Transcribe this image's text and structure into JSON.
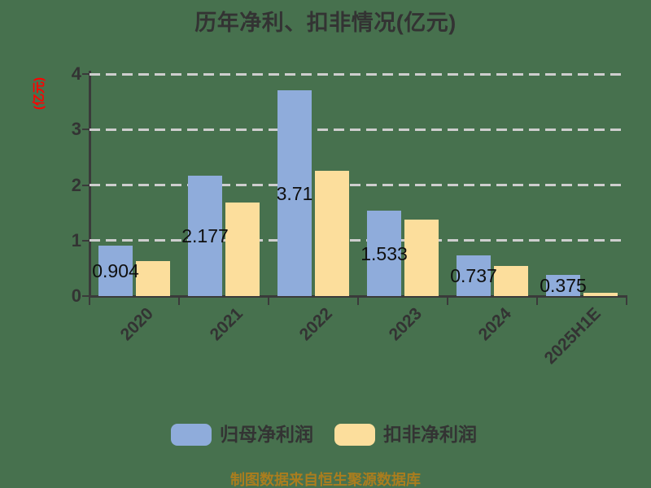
{
  "title": "历年净利、扣非情况(亿元)",
  "colors": {
    "background": "#47714E",
    "bar_blue": "#8FACDB",
    "bar_yellow": "#FCDE9C",
    "grid": "#CECECE",
    "axis": "#3A3A3A",
    "text": "#333333",
    "value_label": "#0F0F0F",
    "ylabel_red": "#FF0000",
    "footer_gold": "#AA7D1E"
  },
  "chart_data": {
    "type": "bar",
    "title": "历年净利、扣非情况(亿元)",
    "ylabel": "(亿元)",
    "xlabel": "",
    "categories": [
      "2020",
      "2021",
      "2022",
      "2023",
      "2024",
      "2025H1E"
    ],
    "series": [
      {
        "name": "归母净利润",
        "color": "#8FACDB",
        "values": [
          0.904,
          2.177,
          3.71,
          1.533,
          0.737,
          0.375
        ],
        "labels": [
          "0.904",
          "2.177",
          "3.71",
          "1.533",
          "0.737",
          "0.375"
        ]
      },
      {
        "name": "扣非净利润",
        "color": "#FCDE9C",
        "values": [
          0.63,
          1.69,
          2.26,
          1.38,
          0.54,
          0.06
        ]
      }
    ],
    "ylim": [
      0,
      4
    ],
    "yticks": [
      0,
      1,
      2,
      3,
      4
    ],
    "grid": "horizontal-dashed",
    "legend_position": "bottom"
  },
  "legend": {
    "items": [
      {
        "label": "归母净利润"
      },
      {
        "label": "扣非净利润"
      }
    ]
  },
  "footer": {
    "text": "制图数据来自恒生聚源数据库"
  }
}
